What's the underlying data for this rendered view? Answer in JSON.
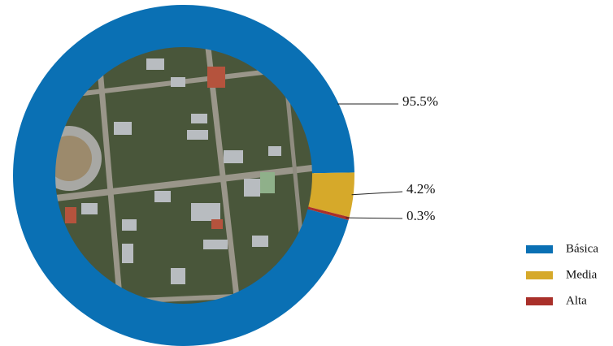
{
  "chart_data": {
    "type": "donut",
    "categories": [
      "Básica",
      "Media",
      "Alta"
    ],
    "values": [
      95.5,
      4.2,
      0.3
    ],
    "value_labels": [
      "95.5%",
      "4.2%",
      "0.3%"
    ],
    "colors": [
      "#0a70b4",
      "#d6a92a",
      "#a9302a"
    ]
  }
}
